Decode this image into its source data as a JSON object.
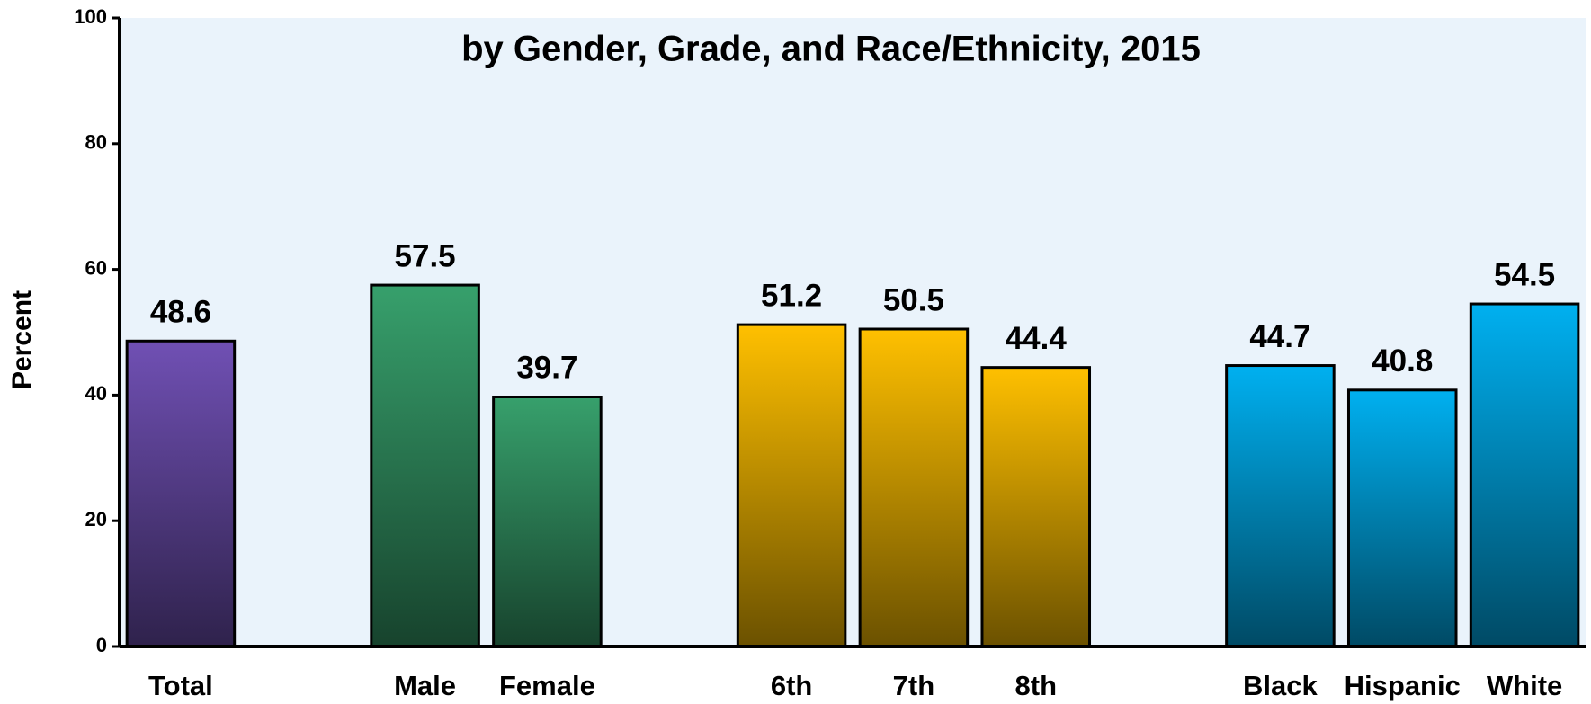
{
  "chart_data": {
    "type": "bar",
    "title": "by Gender, Grade, and Race/Ethnicity,  2015",
    "ylabel": "Percent",
    "categories": [
      "Total",
      null,
      "Male",
      "Female",
      null,
      "6th",
      "7th",
      "8th",
      null,
      "Black",
      "Hispanic",
      "White"
    ],
    "values": [
      48.6,
      null,
      57.5,
      39.7,
      null,
      51.2,
      50.5,
      44.4,
      null,
      44.7,
      40.8,
      54.5
    ],
    "colors": [
      "#7050b4",
      null,
      "#37a06c",
      "#37a06c",
      null,
      "#ffc000",
      "#ffc000",
      "#ffc000",
      null,
      "#00b0f0",
      "#00b0f0",
      "#00b0f0"
    ],
    "ylim": [
      0,
      100
    ],
    "yticks": [
      0,
      20,
      40,
      60,
      80,
      100
    ]
  }
}
